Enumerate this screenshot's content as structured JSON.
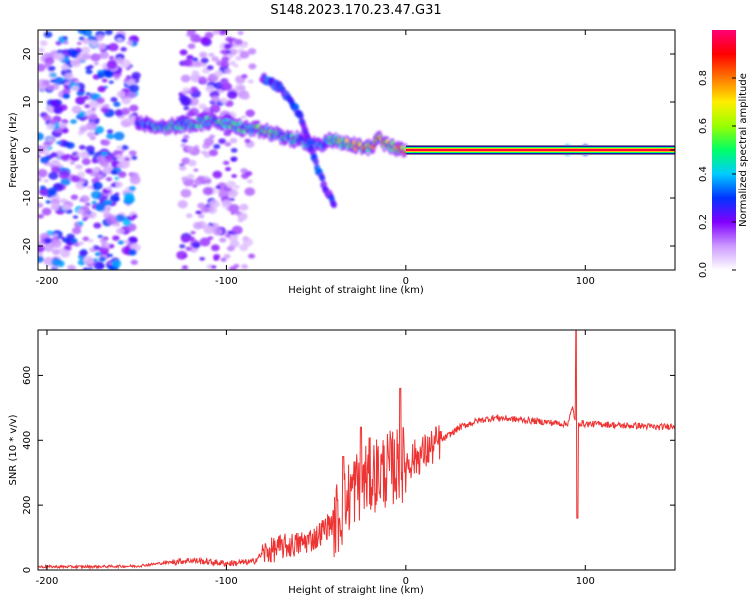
{
  "title": "S148.2023.170.23.47.G31",
  "chart_data": [
    {
      "type": "heatmap",
      "xlabel": "Height of straight line (km)",
      "ylabel": "Frequency (Hz)",
      "xlim": [
        -205,
        150
      ],
      "ylim": [
        -25,
        25
      ],
      "x_ticks": [
        -200,
        -100,
        0,
        100
      ],
      "y_ticks": [
        20,
        10,
        0,
        -10,
        -20
      ],
      "colorbar": {
        "label": "Normalized spectral amplitude",
        "range": [
          0,
          1
        ],
        "ticks": [
          "0.0",
          "0.2",
          "0.4",
          "0.6",
          "0.8"
        ],
        "stops": [
          "#ffffff",
          "#cc99ff",
          "#8000ff",
          "#0033ff",
          "#00ccff",
          "#00ff66",
          "#99ff00",
          "#ffee00",
          "#ff7700",
          "#ff0000",
          "#ff0077"
        ]
      },
      "ridge": {
        "x": [
          -150,
          -140,
          -130,
          -120,
          -110,
          -100,
          -90,
          -80,
          -70,
          -60,
          -50,
          -40,
          -30,
          -20,
          -15,
          -10,
          -5,
          0,
          10,
          20,
          40,
          60,
          80,
          90,
          100,
          120,
          150
        ],
        "frequency": [
          6,
          5,
          5,
          5.5,
          6,
          5.5,
          4.5,
          4,
          3,
          2,
          1,
          2,
          1,
          0.5,
          2.5,
          1,
          0.5,
          0,
          0,
          0,
          0,
          0,
          0,
          0,
          0,
          0,
          0
        ],
        "amplitude": [
          0.3,
          0.45,
          0.5,
          0.45,
          0.5,
          0.5,
          0.5,
          0.6,
          0.5,
          0.45,
          0.4,
          0.5,
          0.7,
          0.8,
          0.85,
          0.7,
          0.75,
          0.9,
          0.95,
          0.95,
          0.95,
          0.95,
          0.95,
          0.9,
          0.95,
          0.95,
          0.95
        ]
      },
      "branch": {
        "x": [
          -80,
          -70,
          -60,
          -55,
          -50,
          -45,
          -40
        ],
        "frequency": [
          15,
          13,
          8,
          3,
          -3,
          -8,
          -11
        ]
      }
    },
    {
      "type": "line",
      "xlabel": "Height of straight line (km)",
      "ylabel": "SNR (10 * v/v)",
      "xlim": [
        -205,
        150
      ],
      "ylim": [
        0,
        740
      ],
      "x_ticks": [
        -200,
        -100,
        0,
        100
      ],
      "y_ticks": [
        0,
        200,
        400,
        600
      ],
      "color": "#ee3333",
      "series": [
        {
          "x": [
            -205,
            -180,
            -150,
            -130,
            -120,
            -100,
            -85,
            -80,
            -70,
            -60,
            -50,
            -45,
            -40,
            -35,
            -30,
            -25,
            -20,
            -15,
            -10,
            -5,
            0,
            10,
            20,
            30,
            40,
            50,
            60,
            70,
            80,
            90,
            93,
            95,
            97,
            100,
            110,
            120,
            130,
            140,
            150
          ],
          "values": [
            10,
            10,
            12,
            25,
            30,
            20,
            25,
            50,
            70,
            80,
            100,
            130,
            150,
            180,
            250,
            270,
            290,
            300,
            310,
            320,
            330,
            360,
            400,
            440,
            460,
            470,
            465,
            460,
            455,
            450,
            500,
            440,
            455,
            450,
            450,
            445,
            445,
            440,
            445
          ]
        }
      ],
      "spikes": [
        {
          "x": -35,
          "peak": 350
        },
        {
          "x": -25,
          "peak": 440
        },
        {
          "x": -3,
          "peak": 560
        },
        {
          "x": 95,
          "peak": 740
        },
        {
          "x": 95.5,
          "trough": 160
        }
      ]
    }
  ]
}
